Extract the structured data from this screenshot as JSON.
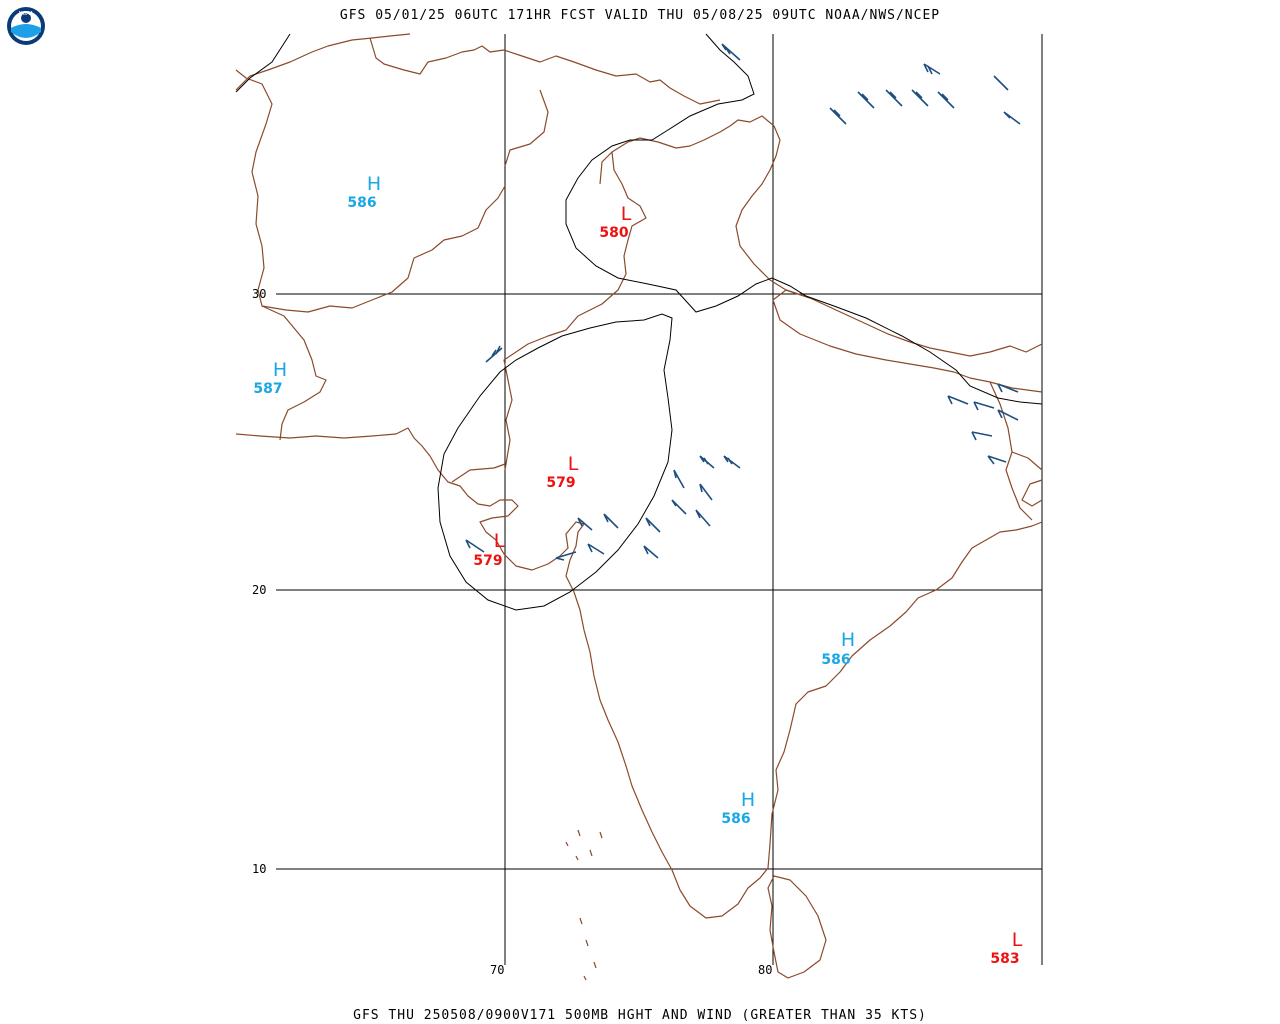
{
  "header": {
    "title": "GFS 05/01/25 06UTC 171HR FCST VALID THU 05/08/25 09UTC NOAA/NWS/NCEP",
    "footer": "GFS THU 250508/0900V171 500MB HGHT AND WIND (GREATER THAN 35 KTS)"
  },
  "logo": {
    "label": "NOAA"
  },
  "axes": {
    "lat_labels": [
      "30",
      "20",
      "10"
    ],
    "lon_labels": [
      "70",
      "80"
    ]
  },
  "centers": [
    {
      "kind": "H",
      "value": "586",
      "color": "#1aa7e6"
    },
    {
      "kind": "H",
      "value": "587",
      "color": "#1aa7e6"
    },
    {
      "kind": "L",
      "value": "580",
      "color": "#ee1111"
    },
    {
      "kind": "L",
      "value": "579",
      "color": "#ee1111"
    },
    {
      "kind": "L",
      "value": "579",
      "color": "#ee1111"
    },
    {
      "kind": "H",
      "value": "586",
      "color": "#1aa7e6"
    },
    {
      "kind": "H",
      "value": "586",
      "color": "#1aa7e6"
    },
    {
      "kind": "L",
      "value": "583",
      "color": "#ee1111"
    }
  ],
  "colors": {
    "border": "#8b4a2b",
    "contour": "#000000",
    "grid": "#000000",
    "barb": "#1f4f80"
  }
}
